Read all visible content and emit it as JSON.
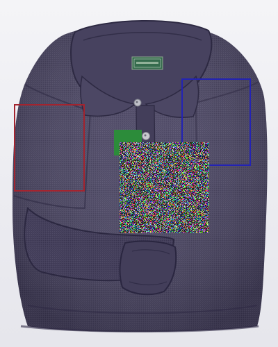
{
  "image": {
    "subject": "folded-long-sleeve-polo-shirt",
    "colors": {
      "background": "#eeeef3",
      "shirt": "#4a4563",
      "shirt_dark": "#302c45",
      "shirt_light": "#5d5876",
      "collar_label": "#356b4d",
      "button": "#c9c9d0",
      "box_red": "#a3242f",
      "box_blue": "#2323b4",
      "green_patch": "#2c8c3a"
    }
  }
}
